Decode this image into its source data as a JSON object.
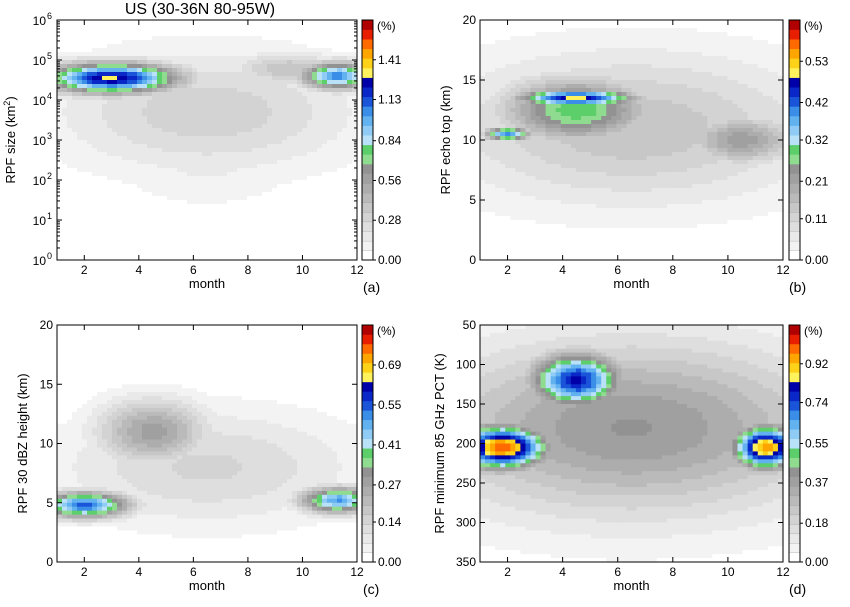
{
  "title": "US (30-36N 80-95W)",
  "chart_data": [
    {
      "type": "heatmap",
      "panel": "(a)",
      "xlabel": "month",
      "ylabel": "RPF size (km²)",
      "ylabel_main": "RPF size (km",
      "ylabel_sup": "2",
      "ylabel_close": ")",
      "xlim": [
        1,
        12
      ],
      "ylim": [
        1,
        1000000
      ],
      "yscale": "log",
      "xticks": [
        "2",
        "4",
        "6",
        "8",
        "10",
        "12"
      ],
      "yticks": [
        {
          "value": 1,
          "base": "10",
          "exp": "0"
        },
        {
          "value": 10,
          "base": "10",
          "exp": "1"
        },
        {
          "value": 100,
          "base": "10",
          "exp": "2"
        },
        {
          "value": 1000,
          "base": "10",
          "exp": "3"
        },
        {
          "value": 10000,
          "base": "10",
          "exp": "4"
        },
        {
          "value": 100000,
          "base": "10",
          "exp": "5"
        },
        {
          "value": 1000000,
          "base": "10",
          "exp": "6"
        }
      ],
      "colorbar_unit": "(%)",
      "colorbar_max": 1.69,
      "colorbar_labels": [
        "1.41",
        "1.13",
        "0.84",
        "0.56",
        "0.28",
        "0.00"
      ],
      "colorbar_values": [
        1.41,
        1.13,
        0.84,
        0.56,
        0.28,
        0.0
      ],
      "features": [
        {
          "x": 6.5,
          "y": 5000,
          "sx": 4.0,
          "sy": 1.1,
          "v": 0.32
        },
        {
          "x": 6.5,
          "y": 400,
          "sx": 2.6,
          "sy": 0.9,
          "v": 0.16
        },
        {
          "x": 3.0,
          "y": 35000,
          "sx": 1.8,
          "sy": 0.28,
          "v": 1.3
        },
        {
          "x": 11.3,
          "y": 40000,
          "sx": 1.0,
          "sy": 0.25,
          "v": 1.05
        },
        {
          "x": 9.5,
          "y": 60000,
          "sx": 1.5,
          "sy": 0.3,
          "v": 0.4
        }
      ]
    },
    {
      "type": "heatmap",
      "panel": "(b)",
      "xlabel": "month",
      "ylabel": "RPF echo top (km)",
      "xlim": [
        1,
        12
      ],
      "ylim": [
        0,
        20
      ],
      "xticks": [
        "2",
        "4",
        "6",
        "8",
        "10",
        "12"
      ],
      "yticks": [
        {
          "value": 0,
          "label": "0"
        },
        {
          "value": 5,
          "label": "5"
        },
        {
          "value": 10,
          "label": "10"
        },
        {
          "value": 15,
          "label": "15"
        },
        {
          "value": 20,
          "label": "20"
        }
      ],
      "colorbar_unit": "(%)",
      "colorbar_max": 0.64,
      "colorbar_labels": [
        "0.53",
        "0.42",
        "0.32",
        "0.21",
        "0.11",
        "0.00"
      ],
      "colorbar_values": [
        0.53,
        0.42,
        0.32,
        0.21,
        0.11,
        0.0
      ],
      "features": [
        {
          "x": 6.5,
          "y": 11,
          "sx": 5.0,
          "sy": 4.5,
          "v": 0.15
        },
        {
          "x": 4.5,
          "y": 12.5,
          "sx": 2.0,
          "sy": 2.0,
          "v": 0.3
        },
        {
          "x": 4.5,
          "y": 13.5,
          "sx": 1.5,
          "sy": 0.5,
          "v": 0.5
        },
        {
          "x": 10.5,
          "y": 10,
          "sx": 1.5,
          "sy": 1.5,
          "v": 0.22
        },
        {
          "x": 2.0,
          "y": 10.5,
          "sx": 0.6,
          "sy": 0.4,
          "v": 0.4
        }
      ]
    },
    {
      "type": "heatmap",
      "panel": "(c)",
      "xlabel": "month",
      "ylabel": "RPF 30 dBZ height (km)",
      "xlim": [
        1,
        12
      ],
      "ylim": [
        0,
        20
      ],
      "xticks": [
        "2",
        "4",
        "6",
        "8",
        "10",
        "12"
      ],
      "yticks": [
        {
          "value": 0,
          "label": "0"
        },
        {
          "value": 5,
          "label": "5"
        },
        {
          "value": 10,
          "label": "10"
        },
        {
          "value": 15,
          "label": "15"
        },
        {
          "value": 20,
          "label": "20"
        }
      ],
      "colorbar_unit": "(%)",
      "colorbar_max": 0.83,
      "colorbar_labels": [
        "0.69",
        "0.55",
        "0.41",
        "0.27",
        "0.14",
        "0.00"
      ],
      "colorbar_values": [
        0.69,
        0.55,
        0.41,
        0.27,
        0.14,
        0.0
      ],
      "features": [
        {
          "x": 6.5,
          "y": 8,
          "sx": 4.0,
          "sy": 3.5,
          "v": 0.14
        },
        {
          "x": 2.0,
          "y": 4.8,
          "sx": 1.2,
          "sy": 0.8,
          "v": 0.55
        },
        {
          "x": 11.3,
          "y": 5.2,
          "sx": 1.0,
          "sy": 0.8,
          "v": 0.5
        },
        {
          "x": 4.5,
          "y": 11,
          "sx": 1.5,
          "sy": 2.0,
          "v": 0.28
        }
      ]
    },
    {
      "type": "heatmap",
      "panel": "(d)",
      "xlabel": "month",
      "ylabel": "RPF minimum 85 GHz PCT (K)",
      "xlim": [
        1,
        12
      ],
      "ylim": [
        350,
        50
      ],
      "yreversed": true,
      "xticks": [
        "2",
        "4",
        "6",
        "8",
        "10",
        "12"
      ],
      "yticks": [
        {
          "value": 50,
          "label": "50"
        },
        {
          "value": 100,
          "label": "100"
        },
        {
          "value": 150,
          "label": "150"
        },
        {
          "value": 200,
          "label": "200"
        },
        {
          "value": 250,
          "label": "250"
        },
        {
          "value": 300,
          "label": "300"
        },
        {
          "value": 350,
          "label": "350"
        }
      ],
      "colorbar_unit": "(%)",
      "colorbar_max": 1.1,
      "colorbar_labels": [
        "0.92",
        "0.74",
        "0.55",
        "0.37",
        "0.18",
        "0.00"
      ],
      "colorbar_values": [
        0.92,
        0.74,
        0.55,
        0.37,
        0.18,
        0.0
      ],
      "features": [
        {
          "x": 6.5,
          "y": 180,
          "sx": 5.5,
          "sy": 80,
          "v": 0.4
        },
        {
          "x": 1.8,
          "y": 205,
          "sx": 1.2,
          "sy": 20,
          "v": 1.0
        },
        {
          "x": 4.5,
          "y": 120,
          "sx": 1.2,
          "sy": 25,
          "v": 0.8
        },
        {
          "x": 11.4,
          "y": 205,
          "sx": 0.9,
          "sy": 20,
          "v": 0.95
        },
        {
          "x": 4.0,
          "y": 190,
          "sx": 1.8,
          "sy": 50,
          "v": 0.35
        }
      ]
    }
  ]
}
